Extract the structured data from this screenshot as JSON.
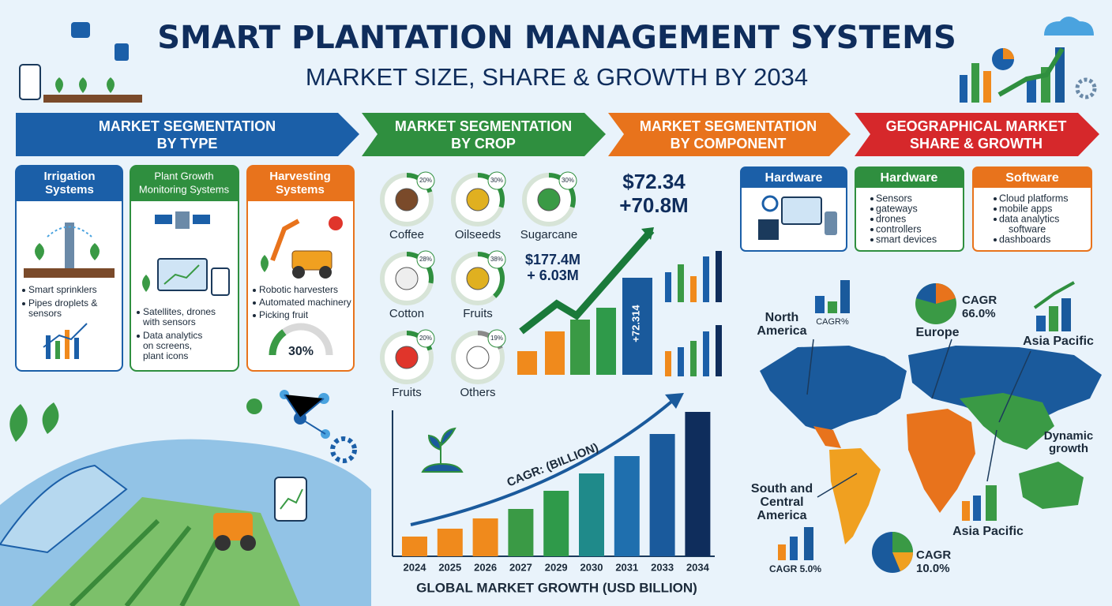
{
  "header": {
    "title": "SMART PLANTATION MANAGEMENT SYSTEMS",
    "subtitle": "MARKET SIZE, SHARE & GROWTH BY 2034"
  },
  "banners": [
    [
      "MARKET SEGMENTATION",
      "BY TYPE"
    ],
    [
      "MARKET SEGMENTATION",
      "BY CROP"
    ],
    [
      "MARKET SEGMENTATION",
      "BY COMPONENT"
    ],
    [
      "GEOGRAPHICAL MARKET",
      "SHARE & GROWTH"
    ]
  ],
  "types": [
    {
      "title": [
        "Irrigation",
        "Systems"
      ],
      "bullets": [
        [
          "Smart sprinklers"
        ],
        [
          "Pipes droplets &",
          "sensors"
        ]
      ]
    },
    {
      "title": [
        "Plant Growth",
        "Monitoring Systems"
      ],
      "bullets": [
        [
          "Satellites, drones",
          "with sensors"
        ],
        [
          "Data analytics",
          "on screens,",
          "plant icons"
        ]
      ]
    },
    {
      "title": [
        "Harvesting",
        "Systems"
      ],
      "bullets": [
        [
          "Robotic harvesters"
        ],
        [
          "Automated machinery"
        ],
        [
          "Picking fruit"
        ]
      ],
      "gauge": 30,
      "gauge_label": "30%"
    }
  ],
  "crops": [
    {
      "name": "Coffee",
      "share": 20,
      "label": "20%"
    },
    {
      "name": "Oilseeds",
      "share": 30,
      "label": "30%"
    },
    {
      "name": "Sugarcane",
      "share": 30,
      "label": "30%"
    },
    {
      "name": "Cotton",
      "share": 28,
      "label": "28%"
    },
    {
      "name": "Fruits",
      "share": 38,
      "label": "38%"
    },
    {
      "name": "Fruits",
      "share": 20,
      "label": "20%"
    },
    {
      "name": "Others",
      "share": 19,
      "label": "19%"
    }
  ],
  "stats": {
    "main": "$72.34",
    "main_growth": "+70.8M",
    "second": "$177.4M",
    "second_growth": "+ 6.03M",
    "bar_label": "+72.314"
  },
  "growth_chart": {
    "annotation": "CAGR: (BILLION)",
    "title": "GLOBAL MARKET GROWTH (USD BILLION)",
    "categories": [
      "2024",
      "2025",
      "2026",
      "2027",
      "2029",
      "2030",
      "2031",
      "2033",
      "2034"
    ],
    "values": [
      25,
      35,
      48,
      60,
      83,
      105,
      127,
      155,
      183
    ],
    "colors": [
      "#f08a1c",
      "#f08a1c",
      "#f08a1c",
      "#3a9a45",
      "#2f9a4a",
      "#1f8a8a",
      "#1f6fae",
      "#1a5a9c",
      "#0f2d5c"
    ]
  },
  "components": [
    {
      "title": "Hardware"
    },
    {
      "title": "Hardware",
      "bullets": [
        "Sensors",
        "gateways",
        "drones",
        "controllers",
        "smart devices"
      ]
    },
    {
      "title": "Software",
      "bullets": [
        "Cloud platforms",
        "mobile apps",
        "data analytics",
        "software",
        "dashboards"
      ]
    }
  ],
  "geography": {
    "north_america": [
      "North",
      "America"
    ],
    "na_cagr": "CAGR%",
    "europe": "Europe",
    "europe_cagr": [
      "CAGR",
      "66.0%"
    ],
    "asia_pacific_top": "Asia Pacific",
    "dynamic": [
      "Dynamic",
      "growth"
    ],
    "south_america": [
      "South and",
      "Central",
      "America"
    ],
    "sa_cagr": "CAGR 5.0%",
    "asia_pacific_bottom": "Asia Pacific",
    "ap_cagr": [
      "CAGR",
      "10.0%"
    ]
  }
}
